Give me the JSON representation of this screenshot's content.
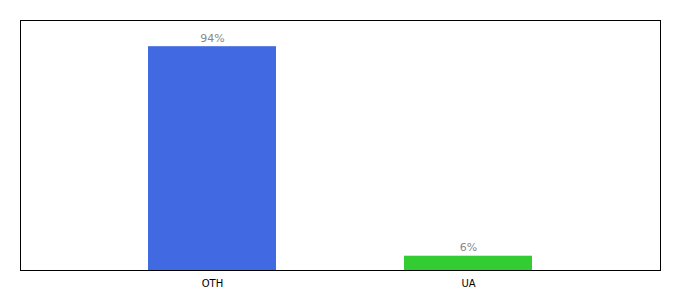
{
  "chart_data": {
    "type": "bar",
    "categories": [
      "OTH",
      "UA"
    ],
    "values": [
      94,
      6
    ],
    "value_labels": [
      "94%",
      "6%"
    ],
    "colors": [
      "#4169e1",
      "#33cc33"
    ],
    "ylim": [
      0,
      105
    ],
    "yticks": [],
    "data_labels": true,
    "tick_labels": "x",
    "grid": false
  }
}
